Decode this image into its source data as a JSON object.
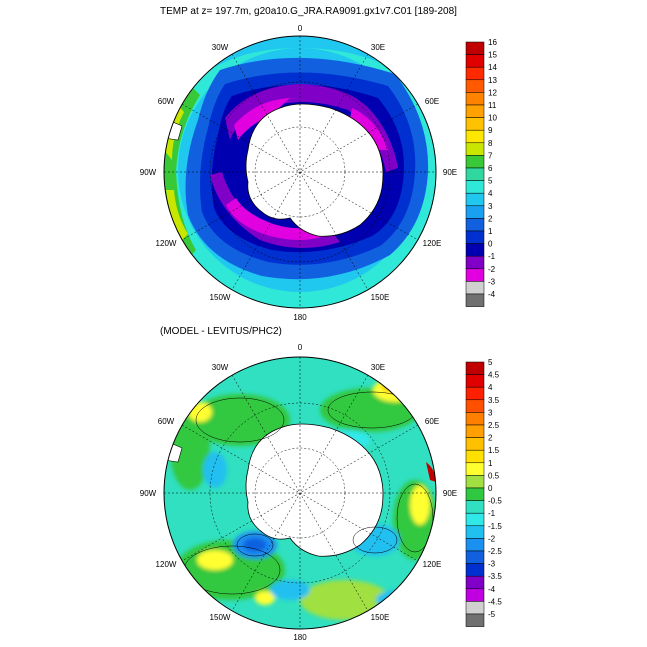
{
  "top_panel": {
    "title": "TEMP at z= 197.7m, g20a10.G_JRA.RA9091.gx1v7.C01 [189-208]",
    "longitude_labels": [
      "0",
      "30E",
      "60E",
      "90E",
      "120E",
      "150E",
      "180",
      "150W",
      "120W",
      "90W",
      "60W",
      "30W"
    ],
    "colorbar": {
      "labels": [
        "16",
        "15",
        "14",
        "13",
        "12",
        "11",
        "10",
        "9",
        "8",
        "7",
        "6",
        "5",
        "4",
        "3",
        "2",
        "1",
        "0",
        "-1",
        "-2",
        "-3",
        "-4"
      ],
      "colors": [
        "#c00000",
        "#e00000",
        "#ff2a00",
        "#ff5a00",
        "#ff8200",
        "#ffa200",
        "#ffc200",
        "#ffe600",
        "#c8e600",
        "#38c838",
        "#30d8a0",
        "#30e8d8",
        "#20c8f0",
        "#1aa0f0",
        "#1060e0",
        "#0030d0",
        "#0000b0",
        "#8000c8",
        "#e000e0",
        "#d0d0d0",
        "#707070"
      ]
    }
  },
  "bottom_panel": {
    "title": "(MODEL - LEVITUS/PHC2)",
    "longitude_labels": [
      "0",
      "30E",
      "60E",
      "90E",
      "120E",
      "150E",
      "180",
      "150W",
      "120W",
      "90W",
      "60W",
      "30W"
    ],
    "colorbar": {
      "labels": [
        "5",
        "4.5",
        "4",
        "3.5",
        "3",
        "2.5",
        "2",
        "1.5",
        "1",
        "0.5",
        "0",
        "-0.5",
        "-1",
        "-1.5",
        "-2",
        "-2.5",
        "-3",
        "-3.5",
        "-4",
        "-4.5",
        "-5"
      ],
      "colors": [
        "#c00000",
        "#e00000",
        "#ff2000",
        "#ff5000",
        "#ff8000",
        "#ffa000",
        "#ffc000",
        "#ffe000",
        "#ffff30",
        "#a0e040",
        "#30c840",
        "#30e0c0",
        "#30e8e8",
        "#20c0f0",
        "#1a90f0",
        "#1060e0",
        "#0030d0",
        "#8000c8",
        "#c000e0",
        "#d0d0d0",
        "#707070"
      ]
    }
  }
}
